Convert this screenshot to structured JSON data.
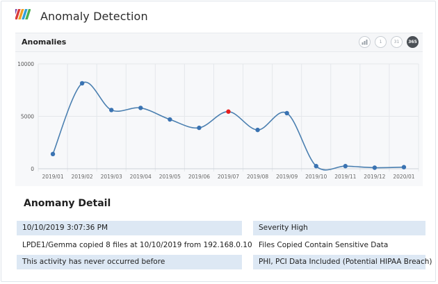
{
  "header": {
    "app_title": "Anomaly Detection",
    "logo_icon": "striped-logo-icon"
  },
  "panel": {
    "title": "Anomalies",
    "icons": [
      {
        "name": "chart-type-icon",
        "label": ""
      },
      {
        "name": "range-1-icon",
        "label": "1"
      },
      {
        "name": "range-31-icon",
        "label": "31"
      },
      {
        "name": "range-365-icon",
        "label": "365"
      }
    ]
  },
  "chart_data": {
    "type": "line",
    "categories": [
      "2019/01",
      "2019/02",
      "2019/03",
      "2019/04",
      "2019/05",
      "2019/06",
      "2019/07",
      "2019/08",
      "2019/09",
      "2019/10",
      "2019/11",
      "2019/12",
      "2020/01"
    ],
    "values": [
      1400,
      8150,
      5600,
      5800,
      4700,
      3900,
      5450,
      3700,
      5300,
      250,
      250,
      100,
      150
    ],
    "highlight_index": 6,
    "ylim": [
      0,
      10000
    ],
    "yticks": [
      "0",
      "5000",
      "10000"
    ],
    "grid": true,
    "colors": {
      "line": "#4a7fb0",
      "point": "#3a73b2",
      "highlight": "#e81d1d"
    }
  },
  "detail": {
    "title": "Anomany Detail",
    "left": [
      "10/10/2019 3:07:36 PM",
      "LPDE1/Gemma copied 8 files at 10/10/2019 from 192.168.0.10",
      "This activity has never occurred before"
    ],
    "right": [
      "Severity High",
      "Files Copied Contain Sensitive Data",
      "PHI, PCI Data Included (Potential HIPAA Breach)"
    ]
  }
}
